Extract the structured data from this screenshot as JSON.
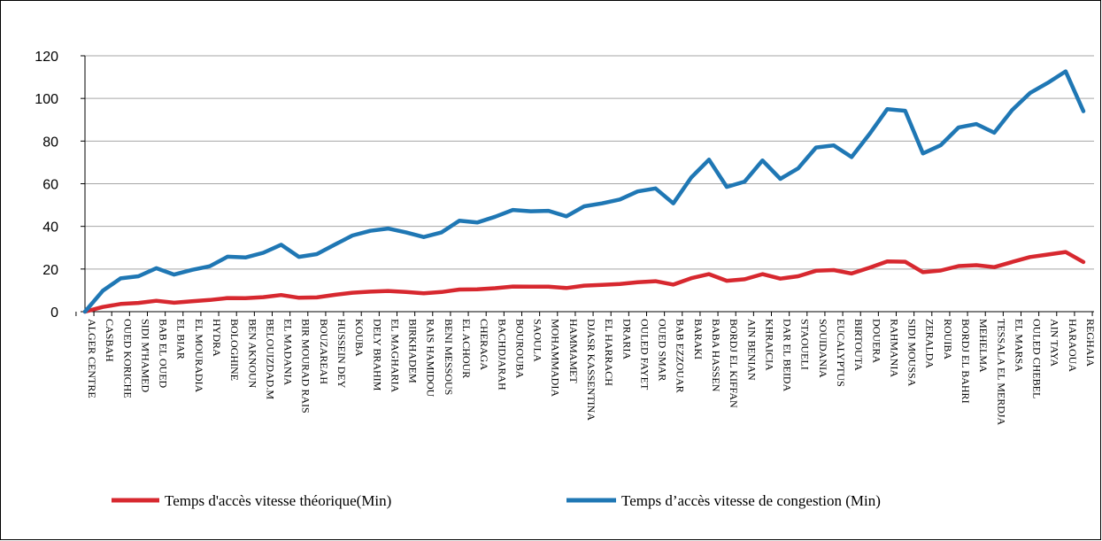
{
  "chart_data": {
    "type": "line",
    "ylim": [
      0,
      120
    ],
    "yticks": [
      0,
      20,
      40,
      60,
      80,
      100,
      120
    ],
    "grid": "horizontal",
    "legend_position": "bottom",
    "colors": {
      "theorique": "#d7282f",
      "congestion": "#1f77b4"
    },
    "categories": [
      "ALGER CENTRE",
      "CASBAH",
      "OUED KORICHE",
      "SIDI M'HAMED",
      "BAB EL OUED",
      "EL BIAR",
      "EL MOURADIA",
      "HYDRA",
      "BOLOGHINE",
      "BEN AKNOUN",
      "BELOUIZDAD.M",
      "EL MADANIA",
      "BIR MOURAD RAIS",
      "BOUZAREAH",
      "HUSSEIN DEY",
      "KOUBA",
      "DELY BRAHIM",
      "EL MAGHARIA",
      "BIRKHADEM",
      "RAIS HAMIDOU",
      "BENI MESSOUS",
      "EL ACHOUR",
      "CHERAGA",
      "BACHDJARAH",
      "BOUROUBA",
      "SAOULA",
      "MOHAMMADIA",
      "HAMMAMET",
      "DJASR KASSENTINA",
      "EL HARRACH",
      "DRARIA",
      "OULED FAYET",
      "OUED SMAR",
      "BAB EZZOUAR",
      "BARAKI",
      "BABA HASSEN",
      "BORDJ EL KIFFAN",
      "AIN BENIAN",
      "KHRAICIA",
      "DAR EL BEIDA",
      "STAOUELI",
      "SOUIDANIA",
      "EUCALYPTUS",
      "BIRTOUTA",
      "DOUERA",
      "RAHMANIA",
      "SIDI MOUSSA",
      "ZERALDA",
      "ROUIBA",
      "BORDJ EL BAHRI",
      "MEHELMA",
      "TESSALA EL MERDJA",
      "EL MARSA",
      "OULED CHEBEL",
      "AIN TAYA",
      "HARAOUA",
      "REGHAIA"
    ],
    "series": [
      {
        "name": "Temps d'accès vitesse théorique(Min)",
        "key": "theorique",
        "values": [
          0,
          2.2,
          3.6,
          4.1,
          5.1,
          4.2,
          4.9,
          5.5,
          6.4,
          6.3,
          6.8,
          7.8,
          6.5,
          6.7,
          7.9,
          8.9,
          9.4,
          9.7,
          9.2,
          8.6,
          9.2,
          10.4,
          10.5,
          11,
          11.8,
          11.7,
          11.7,
          11.1,
          12.2,
          12.6,
          13,
          13.8,
          14.3,
          12.7,
          15.7,
          17.6,
          14.5,
          15.2,
          17.6,
          15.5,
          16.6,
          19.2,
          19.5,
          17.9,
          20.6,
          23.6,
          23.4,
          18.5,
          19.3,
          21.4,
          21.8,
          20.9,
          23.3,
          25.6,
          26.8,
          28,
          23.3
        ]
      },
      {
        "name": "Temps d’accès vitesse de congestion (Min)",
        "key": "congestion",
        "values": [
          0,
          9.8,
          15.6,
          16.6,
          20.4,
          17.4,
          19.6,
          21.3,
          25.8,
          25.4,
          27.6,
          31.4,
          25.7,
          27,
          31.4,
          35.7,
          37.9,
          39,
          37.2,
          35,
          37.2,
          42.7,
          41.8,
          44.5,
          47.7,
          47.1,
          47.3,
          44.7,
          49.4,
          50.8,
          52.6,
          56.4,
          57.8,
          50.8,
          62.9,
          71.3,
          58.5,
          61,
          70.9,
          62.3,
          67.2,
          77,
          78,
          72.5,
          83.3,
          95,
          94.2,
          74.2,
          78.1,
          86.4,
          88,
          83.9,
          94.5,
          102.5,
          107.3,
          112.7,
          94
        ]
      }
    ]
  }
}
